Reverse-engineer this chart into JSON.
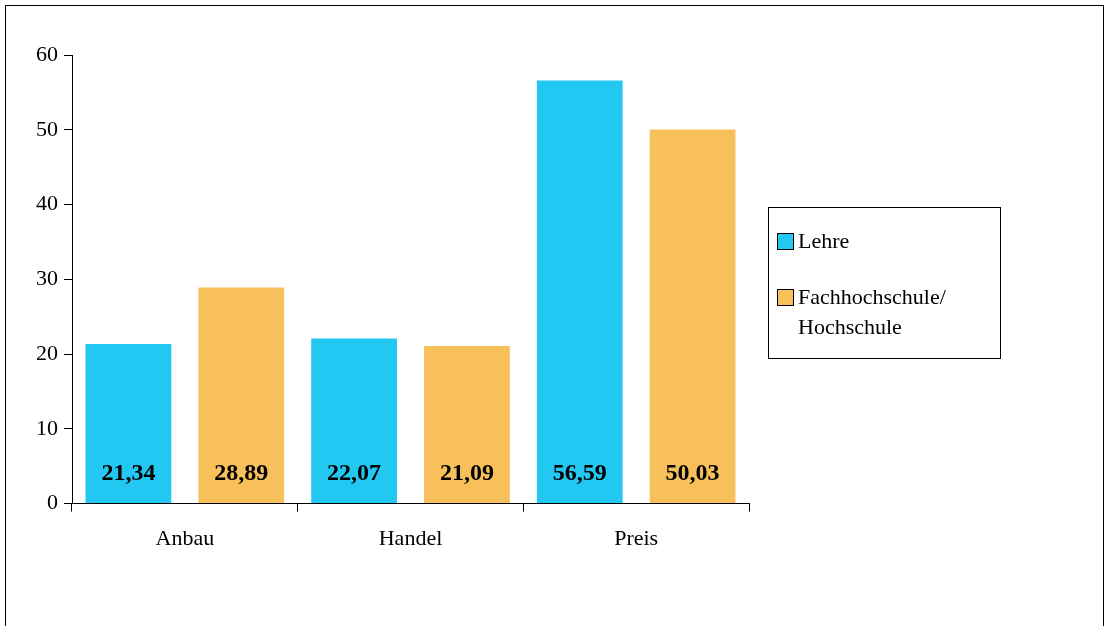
{
  "chart_data": {
    "type": "bar",
    "categories": [
      "Anbau",
      "Handel",
      "Preis"
    ],
    "series": [
      {
        "name": "Lehre",
        "color": "#22c8f2",
        "values": [
          21.34,
          22.07,
          56.59
        ],
        "value_labels": [
          "21,34",
          "22,07",
          "56,59"
        ]
      },
      {
        "name": "Fachhochschule/\nHochschule",
        "color": "#f8c05a",
        "values": [
          28.89,
          21.09,
          50.03
        ],
        "value_labels": [
          "28,89",
          "21,09",
          "50,03"
        ]
      }
    ],
    "ylim": [
      0,
      60
    ],
    "yticks": [
      0,
      10,
      20,
      30,
      40,
      50,
      60
    ],
    "legend": "right"
  }
}
